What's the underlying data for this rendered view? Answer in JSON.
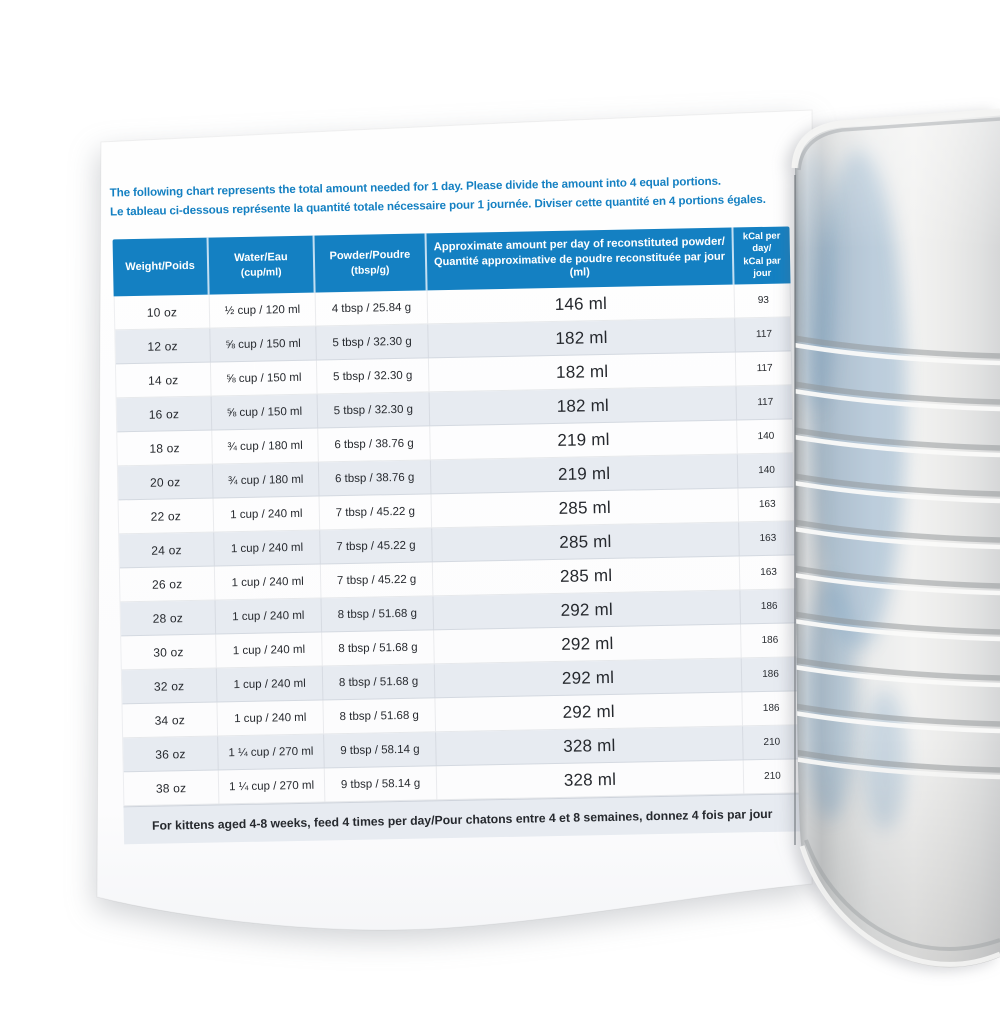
{
  "intro": {
    "line_en": "The following chart represents the total amount needed for 1 day. Please divide the amount into 4 equal portions.",
    "line_fr": "Le tableau ci-dessous représente la quantité totale nécessaire pour 1 journée. Diviser cette quantité en 4 portions égales."
  },
  "table": {
    "headers": [
      {
        "main": "Weight/Poids",
        "sub": ""
      },
      {
        "main": "Water/Eau",
        "sub": "(cup/ml)"
      },
      {
        "main": "Powder/Poudre",
        "sub": "(tbsp/g)"
      },
      {
        "main": "Approximate amount per day of reconstituted powder/",
        "sub": "Quantité approximative de poudre reconstituée par jour (ml)"
      },
      {
        "main": "kCal per day/",
        "sub": "kCal par jour"
      }
    ],
    "rows": [
      {
        "weight": "10 oz",
        "water": "½ cup / 120 ml",
        "powder": "4 tbsp / 25.84 g",
        "amount": "146 ml",
        "kcal": "93"
      },
      {
        "weight": "12 oz",
        "water": "⅝ cup / 150 ml",
        "powder": "5 tbsp / 32.30 g",
        "amount": "182 ml",
        "kcal": "117"
      },
      {
        "weight": "14 oz",
        "water": "⅝ cup / 150 ml",
        "powder": "5 tbsp / 32.30 g",
        "amount": "182 ml",
        "kcal": "117"
      },
      {
        "weight": "16 oz",
        "water": "⅝ cup / 150 ml",
        "powder": "5 tbsp / 32.30 g",
        "amount": "182 ml",
        "kcal": "117"
      },
      {
        "weight": "18 oz",
        "water": "¾ cup / 180 ml",
        "powder": "6 tbsp / 38.76 g",
        "amount": "219 ml",
        "kcal": "140"
      },
      {
        "weight": "20 oz",
        "water": "¾ cup / 180 ml",
        "powder": "6 tbsp / 38.76 g",
        "amount": "219 ml",
        "kcal": "140"
      },
      {
        "weight": "22 oz",
        "water": "1 cup / 240 ml",
        "powder": "7 tbsp / 45.22 g",
        "amount": "285 ml",
        "kcal": "163"
      },
      {
        "weight": "24 oz",
        "water": "1 cup / 240 ml",
        "powder": "7 tbsp / 45.22 g",
        "amount": "285 ml",
        "kcal": "163"
      },
      {
        "weight": "26 oz",
        "water": "1 cup / 240 ml",
        "powder": "7 tbsp / 45.22 g",
        "amount": "285 ml",
        "kcal": "163"
      },
      {
        "weight": "28 oz",
        "water": "1 cup / 240 ml",
        "powder": "8 tbsp / 51.68 g",
        "amount": "292 ml",
        "kcal": "186"
      },
      {
        "weight": "30 oz",
        "water": "1 cup / 240 ml",
        "powder": "8 tbsp / 51.68 g",
        "amount": "292 ml",
        "kcal": "186"
      },
      {
        "weight": "32 oz",
        "water": "1 cup / 240 ml",
        "powder": "8 tbsp / 51.68 g",
        "amount": "292 ml",
        "kcal": "186"
      },
      {
        "weight": "34 oz",
        "water": "1 cup / 240 ml",
        "powder": "8 tbsp / 51.68 g",
        "amount": "292 ml",
        "kcal": "186"
      },
      {
        "weight": "36 oz",
        "water": "1 ¼ cup / 270 ml",
        "powder": "9 tbsp / 58.14 g",
        "amount": "328 ml",
        "kcal": "210"
      },
      {
        "weight": "38 oz",
        "water": "1 ¼ cup / 270 ml",
        "powder": "9 tbsp / 58.14 g",
        "amount": "328 ml",
        "kcal": "210"
      }
    ],
    "footer_note": "For kittens aged 4-8 weeks, feed 4 times per day/Pour chatons entre 4 et 8 semaines, donnez 4 fois par jour"
  },
  "colors": {
    "header_blue": "#1480c2",
    "intro_blue": "#1480c2",
    "row_alt": "#e7ebf1",
    "text_dark": "#26292e",
    "can_silver": "#e9eaea"
  }
}
